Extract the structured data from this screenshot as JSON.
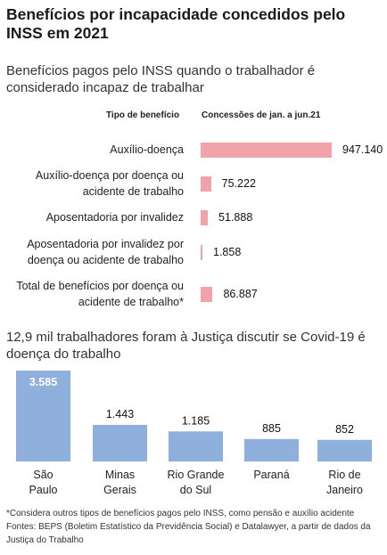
{
  "title": "Benefícios por incapacidade concedidos pelo INSS em 2021",
  "chart_data": [
    {
      "type": "bar",
      "orientation": "horizontal",
      "subtitle": "Benefícios pagos pelo INSS quando o trabalhador é considerado incapaz de trabalhar",
      "category_header": "Tipo de benefício",
      "value_header": "Concessões de jan. a jun.21",
      "categories": [
        "Auxílio-doença",
        "Auxílio-doença por doença ou acidente de trabalho",
        "Aposentadoria por invalidez",
        "Aposentadoria por invalidez por doença ou acidente de trabalho",
        "Total de benefícios por doença ou acidente de trabalho*"
      ],
      "values": [
        947140,
        75222,
        51888,
        1858,
        86887
      ],
      "value_labels": [
        "947.140",
        "75.222",
        "51.888",
        "1.858",
        "86.887"
      ],
      "bar_color": "#f2a3aa"
    },
    {
      "type": "bar",
      "orientation": "vertical",
      "subtitle": "12,9 mil trabalhadores foram à Justiça discutir se Covid-19 é doença do trabalho",
      "categories": [
        "São Paulo",
        "Minas Gerais",
        "Rio Grande do Sul",
        "Paraná",
        "Rio de Janeiro"
      ],
      "category_lines": [
        [
          "São",
          "Paulo"
        ],
        [
          "Minas",
          "Gerais"
        ],
        [
          "Rio Grande",
          "do Sul"
        ],
        [
          "Paraná"
        ],
        [
          "Rio de",
          "Janeiro"
        ]
      ],
      "values": [
        3585,
        1443,
        1185,
        885,
        852
      ],
      "value_labels": [
        "3.585",
        "1.443",
        "1.185",
        "885",
        "852"
      ],
      "bar_color": "#8fb0dc"
    }
  ],
  "footnote": {
    "line1": "*Considera outros tipos de benefícios pagos pelo INSS, como pensão e auxílio acidente",
    "line2": "Fontes: BEPS (Boletim Estatístico da Previdência Social) e Datalawyer, a partir de dados da Justiça do Trabalho"
  }
}
